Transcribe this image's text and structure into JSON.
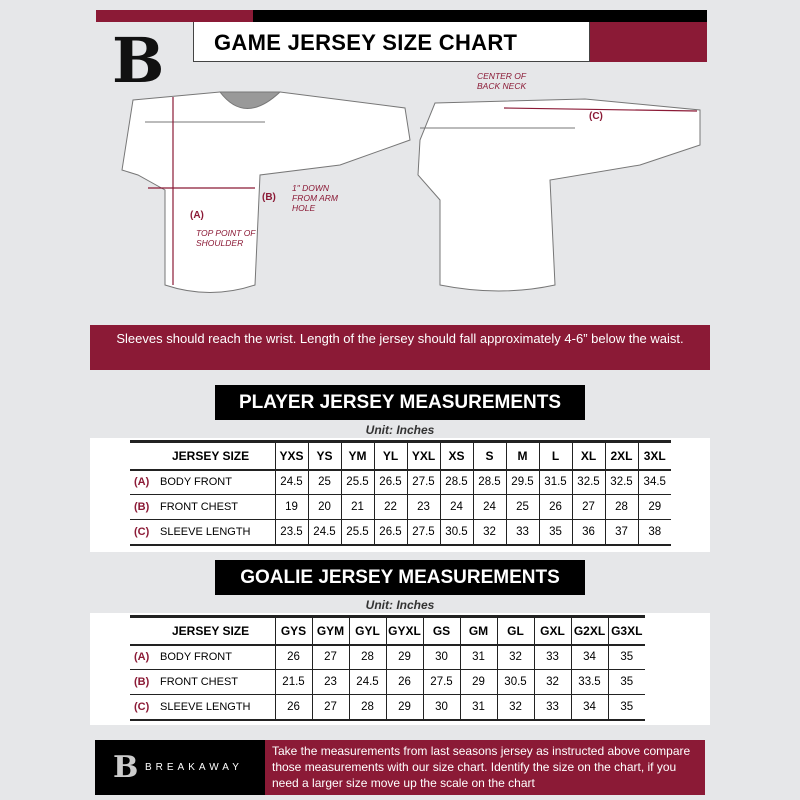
{
  "header": {
    "title": "GAME JERSEY SIZE CHART",
    "logo_letter": "B"
  },
  "diagram": {
    "front_labels": {
      "a": "(A)",
      "a_note": "TOP POINT OF SHOULDER",
      "b": "(B)",
      "b_note": "1\" DOWN FROM ARM HOLE"
    },
    "back_labels": {
      "c": "(C)",
      "c_note": "CENTER OF BACK NECK"
    }
  },
  "notice": "Sleeves should reach the wrist. Length of the jersey should fall approximately 4-6” below the waist.",
  "player": {
    "heading": "PLAYER JERSEY MEASUREMENTS",
    "unit": "Unit: Inches",
    "size_header": "JERSEY SIZE",
    "sizes": [
      "YXS",
      "YS",
      "YM",
      "YL",
      "YXL",
      "XS",
      "S",
      "M",
      "L",
      "XL",
      "2XL",
      "3XL"
    ],
    "rows": [
      {
        "code": "(A)",
        "label": "BODY FRONT",
        "values": [
          "24.5",
          "25",
          "25.5",
          "26.5",
          "27.5",
          "28.5",
          "28.5",
          "29.5",
          "31.5",
          "32.5",
          "32.5",
          "34.5"
        ]
      },
      {
        "code": "(B)",
        "label": "FRONT CHEST",
        "values": [
          "19",
          "20",
          "21",
          "22",
          "23",
          "24",
          "24",
          "25",
          "26",
          "27",
          "28",
          "29"
        ]
      },
      {
        "code": "(C)",
        "label": "SLEEVE LENGTH",
        "values": [
          "23.5",
          "24.5",
          "25.5",
          "26.5",
          "27.5",
          "30.5",
          "32",
          "33",
          "35",
          "36",
          "37",
          "38"
        ]
      }
    ]
  },
  "goalie": {
    "heading": "GOALIE JERSEY MEASUREMENTS",
    "unit": "Unit: Inches",
    "size_header": "JERSEY SIZE",
    "sizes": [
      "GYS",
      "GYM",
      "GYL",
      "GYXL",
      "GS",
      "GM",
      "GL",
      "GXL",
      "G2XL",
      "G3XL"
    ],
    "rows": [
      {
        "code": "(A)",
        "label": "BODY FRONT",
        "values": [
          "26",
          "27",
          "28",
          "29",
          "30",
          "31",
          "32",
          "33",
          "34",
          "35"
        ]
      },
      {
        "code": "(B)",
        "label": "FRONT CHEST",
        "values": [
          "21.5",
          "23",
          "24.5",
          "26",
          "27.5",
          "29",
          "30.5",
          "32",
          "33.5",
          "35"
        ]
      },
      {
        "code": "(C)",
        "label": "SLEEVE LENGTH",
        "values": [
          "26",
          "27",
          "28",
          "29",
          "30",
          "31",
          "32",
          "33",
          "34",
          "35"
        ]
      }
    ]
  },
  "footer": {
    "brand": "BREAKAWAY",
    "text": "Take the measurements from last seasons jersey as instructed above compare those measurements  with our size chart. Identify the size on the chart, if you need a larger size move up the scale on the chart"
  },
  "colors": {
    "accent": "#8b1a36",
    "dark": "#000000",
    "background": "#e6e7e9"
  }
}
